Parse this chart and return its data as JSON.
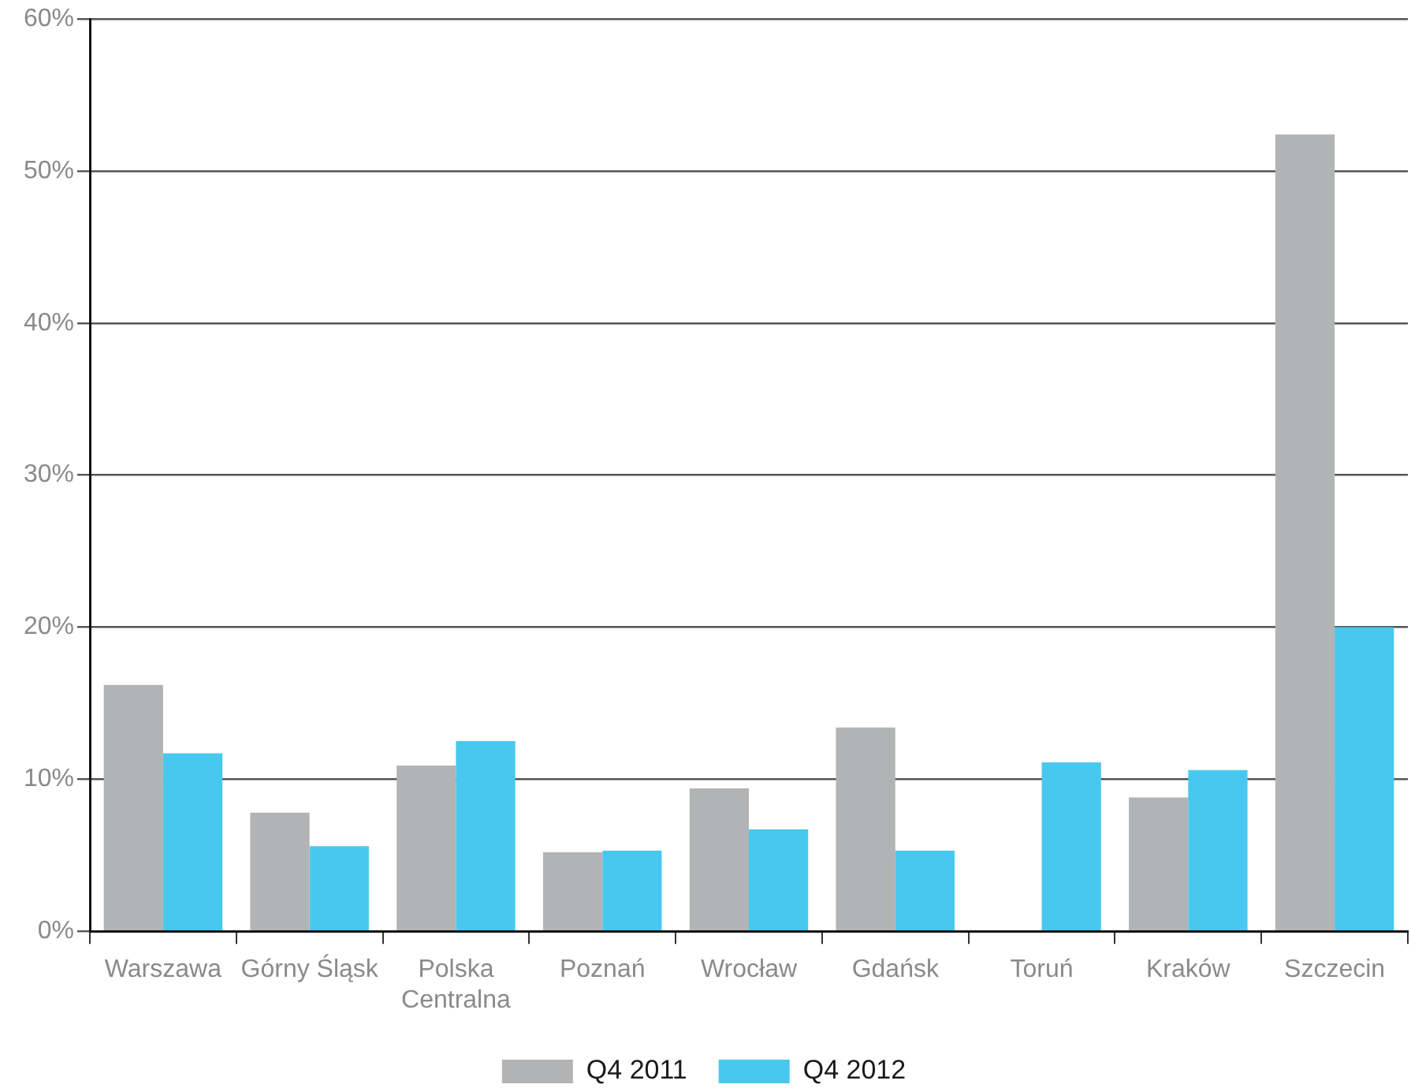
{
  "chart_data": {
    "type": "bar",
    "categories": [
      "Warszawa",
      "Górny Śląsk",
      "Polska Centralna",
      "Poznań",
      "Wrocław",
      "Gdańsk",
      "Toruń",
      "Kraków",
      "Szczecin"
    ],
    "series": [
      {
        "name": "Q4 2011",
        "color": "#b1b3b4",
        "values": [
          16.2,
          7.8,
          10.9,
          5.2,
          9.4,
          13.4,
          null,
          8.8,
          52.4
        ]
      },
      {
        "name": "Q4 2012",
        "color": "#48c8ee",
        "values": [
          11.7,
          5.6,
          12.5,
          5.3,
          6.7,
          5.3,
          11.1,
          10.6,
          20.0
        ]
      }
    ],
    "ylim": [
      0,
      60
    ],
    "yticks": [
      {
        "value": 0,
        "label": "0%"
      },
      {
        "value": 10,
        "label": "10%"
      },
      {
        "value": 20,
        "label": "20%"
      },
      {
        "value": 30,
        "label": "30%"
      },
      {
        "value": 40,
        "label": "40%"
      },
      {
        "value": 50,
        "label": "50%"
      },
      {
        "value": 60,
        "label": "60%"
      }
    ],
    "grid": "y",
    "legend": "bottom"
  }
}
